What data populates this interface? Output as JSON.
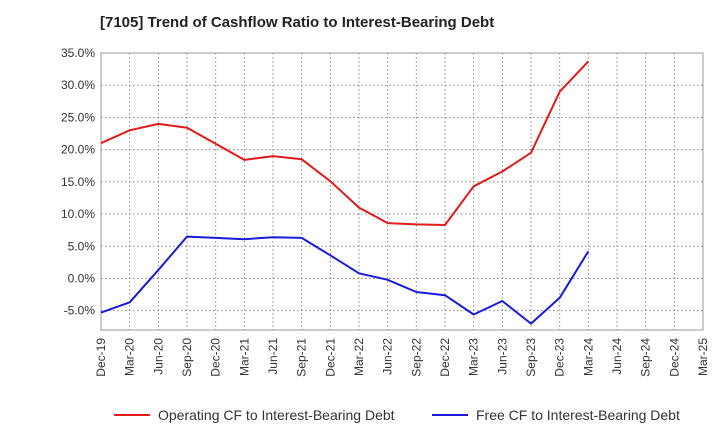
{
  "chart_data": {
    "type": "line",
    "title": "[7105]  Trend of Cashflow Ratio to Interest-Bearing Debt",
    "xlabel": "",
    "ylabel": "",
    "categories": [
      "Dec-19",
      "Mar-20",
      "Jun-20",
      "Sep-20",
      "Dec-20",
      "Mar-21",
      "Jun-21",
      "Sep-21",
      "Dec-21",
      "Mar-22",
      "Jun-22",
      "Sep-22",
      "Dec-22",
      "Mar-23",
      "Jun-23",
      "Sep-23",
      "Dec-23",
      "Mar-24",
      "Jun-24",
      "Sep-24",
      "Dec-24",
      "Mar-25"
    ],
    "y_ticks": [
      "35.0%",
      "30.0%",
      "25.0%",
      "20.0%",
      "15.0%",
      "10.0%",
      "5.0%",
      "0.0%",
      "-5.0%"
    ],
    "ylim": [
      -8,
      35
    ],
    "grid": true,
    "legend_position": "bottom",
    "series": [
      {
        "name": "Operating CF to Interest-Bearing Debt",
        "color": "#e31a1c",
        "values": [
          21.0,
          23.0,
          24.0,
          23.4,
          20.9,
          18.4,
          19.0,
          18.5,
          15.1,
          11.0,
          8.6,
          8.4,
          8.3,
          14.3,
          16.6,
          19.5,
          29.0,
          33.7,
          null,
          null,
          null,
          null
        ]
      },
      {
        "name": "Free CF to Interest-Bearing Debt",
        "color": "#1a1adb",
        "values": [
          -5.3,
          -3.7,
          1.3,
          6.5,
          6.3,
          6.1,
          6.4,
          6.3,
          3.6,
          0.8,
          -0.2,
          -2.1,
          -2.6,
          -5.6,
          -3.5,
          -7.0,
          -3.0,
          4.2,
          null,
          null,
          null,
          null
        ]
      }
    ]
  }
}
